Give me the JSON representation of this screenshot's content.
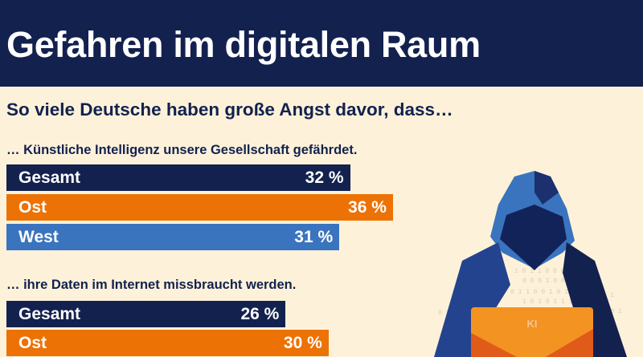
{
  "header": {
    "title": "Gefahren im digitalen Raum"
  },
  "subtitle": "So viele Deutsche haben große Angst davor, dass…",
  "illustration": {
    "laptop_label": "KI"
  },
  "colors": {
    "Gesamt": "#13214f",
    "Ost": "#ec7205",
    "West": "#3a74be",
    "background": "#fdf2d9"
  },
  "chart_data": [
    {
      "type": "bar",
      "title": "… Künstliche Intelligenz unsere Gesellschaft gefährdet.",
      "categories": [
        "Gesamt",
        "Ost",
        "West"
      ],
      "values": [
        32,
        36,
        31
      ],
      "value_labels": [
        "32 %",
        "36 %",
        "31 %"
      ],
      "unit": "%"
    },
    {
      "type": "bar",
      "title": "… ihre Daten im Internet missbraucht werden.",
      "categories": [
        "Gesamt",
        "Ost"
      ],
      "values": [
        26,
        30
      ],
      "value_labels": [
        "26 %",
        "30 %"
      ],
      "unit": "%"
    }
  ]
}
